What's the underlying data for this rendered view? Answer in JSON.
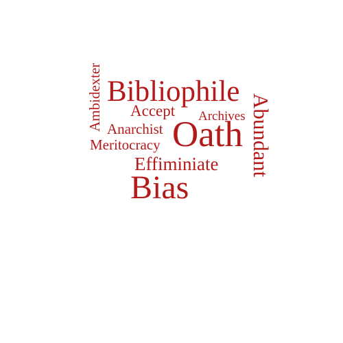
{
  "cloud": {
    "color": "#b31b1b",
    "words": [
      {
        "text": "Bibliophile"
      },
      {
        "text": "Oath"
      },
      {
        "text": "Bias"
      },
      {
        "text": "Abundant"
      },
      {
        "text": "Ambidexter"
      },
      {
        "text": "Accept"
      },
      {
        "text": "Archives"
      },
      {
        "text": "Anarchist"
      },
      {
        "text": "Meritocracy"
      },
      {
        "text": "Effiminiate"
      }
    ]
  }
}
